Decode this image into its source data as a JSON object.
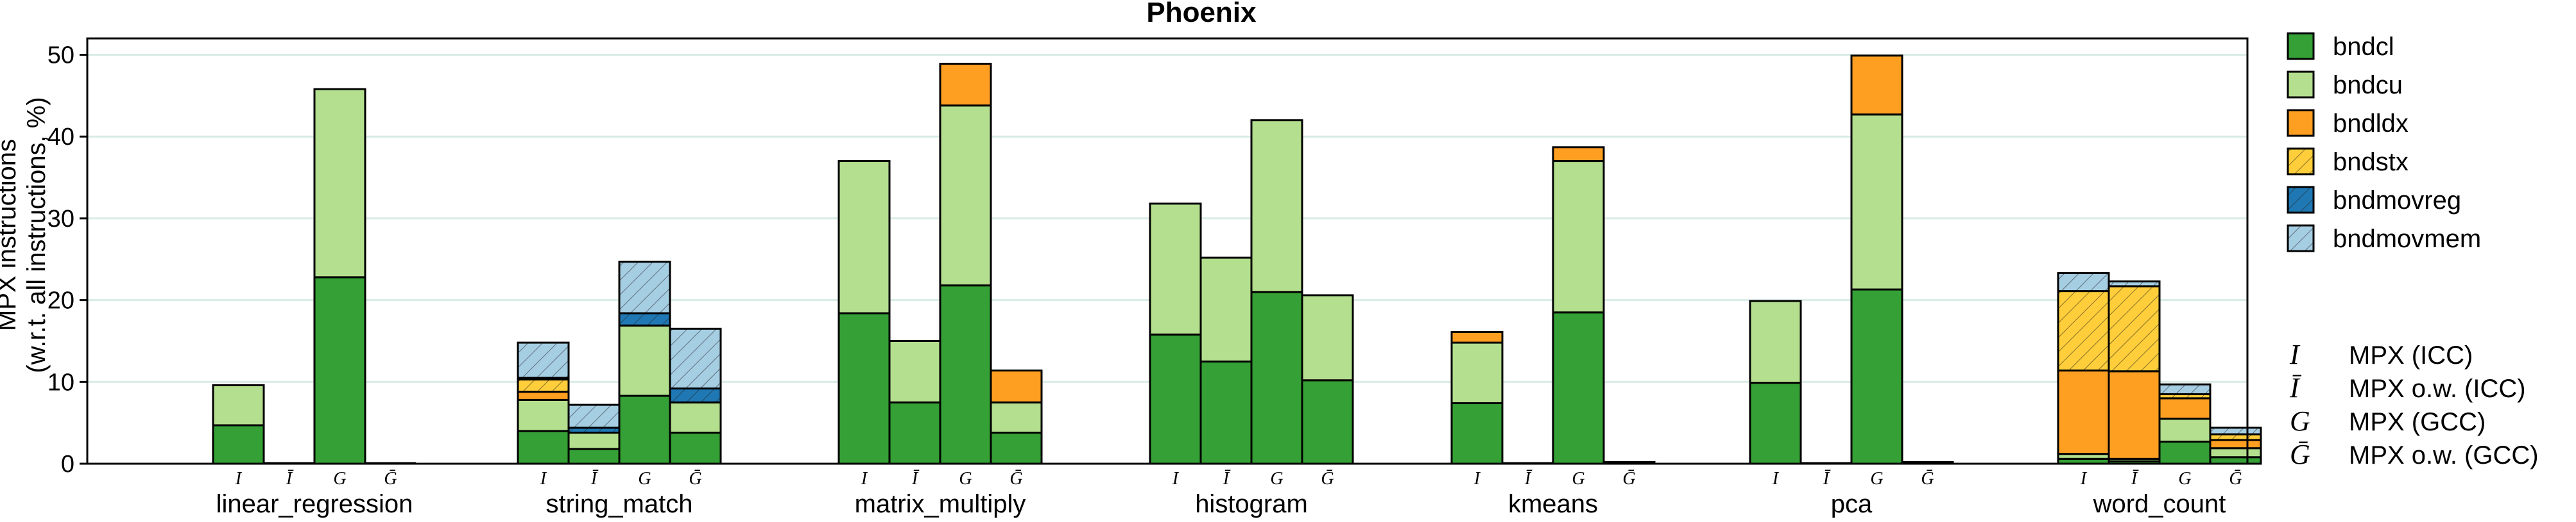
{
  "chart_data": {
    "type": "bar",
    "stacked": true,
    "title": "Phoenix",
    "ylabel_line1": "MPX instructions",
    "ylabel_line2": "(w.r.t. all instructions, %)",
    "ylim": [
      0,
      52
    ],
    "yticks": [
      0,
      10,
      20,
      30,
      40,
      50
    ],
    "grid": "horizontal",
    "legend_position": "right",
    "series": [
      {
        "name": "bndcl",
        "color": "#35a035",
        "pattern": "solid"
      },
      {
        "name": "bndcu",
        "color": "#b3df8e",
        "pattern": "solid"
      },
      {
        "name": "bndldx",
        "color": "#ff9f22",
        "pattern": "solid"
      },
      {
        "name": "bndstx",
        "color": "#ffce3a",
        "pattern": "hatch"
      },
      {
        "name": "bndmovreg",
        "color": "#1f78b4",
        "pattern": "hatch"
      },
      {
        "name": "bndmovmem",
        "color": "#a6cee3",
        "pattern": "hatch"
      }
    ],
    "variants": [
      "I",
      "Ī",
      "G",
      "Ḡ"
    ],
    "variant_key": [
      {
        "symbol": "I",
        "label": "MPX (ICC)"
      },
      {
        "symbol": "Ī",
        "label": "MPX o.w. (ICC)"
      },
      {
        "symbol": "G",
        "label": "MPX (GCC)"
      },
      {
        "symbol": "Ḡ",
        "label": "MPX o.w. (GCC)"
      }
    ],
    "benchmarks": [
      {
        "name": "linear_regression",
        "bars": [
          {
            "variant": "I",
            "values": [
              4.7,
              4.9,
              0,
              0,
              0,
              0
            ]
          },
          {
            "variant": "Ī",
            "values": [
              0,
              0,
              0,
              0,
              0,
              0
            ]
          },
          {
            "variant": "G",
            "values": [
              22.8,
              23.0,
              0,
              0,
              0,
              0
            ]
          },
          {
            "variant": "Ḡ",
            "values": [
              0,
              0,
              0,
              0,
              0,
              0
            ]
          }
        ]
      },
      {
        "name": "string_match",
        "bars": [
          {
            "variant": "I",
            "values": [
              4.0,
              3.8,
              1.0,
              1.5,
              0.2,
              4.3
            ]
          },
          {
            "variant": "Ī",
            "values": [
              1.8,
              2.0,
              0,
              0,
              0.6,
              2.8
            ]
          },
          {
            "variant": "G",
            "values": [
              8.3,
              8.6,
              0,
              0,
              1.5,
              6.3
            ]
          },
          {
            "variant": "Ḡ",
            "values": [
              3.8,
              3.7,
              0,
              0,
              1.7,
              7.3
            ]
          }
        ]
      },
      {
        "name": "matrix_multiply",
        "bars": [
          {
            "variant": "I",
            "values": [
              18.4,
              18.6,
              0,
              0,
              0,
              0
            ]
          },
          {
            "variant": "Ī",
            "values": [
              7.5,
              7.5,
              0,
              0,
              0,
              0
            ]
          },
          {
            "variant": "G",
            "values": [
              21.8,
              22.0,
              5.1,
              0,
              0,
              0
            ]
          },
          {
            "variant": "Ḡ",
            "values": [
              3.8,
              3.7,
              3.9,
              0,
              0,
              0
            ]
          }
        ]
      },
      {
        "name": "histogram",
        "bars": [
          {
            "variant": "I",
            "values": [
              15.8,
              16.0,
              0,
              0,
              0,
              0
            ]
          },
          {
            "variant": "Ī",
            "values": [
              12.5,
              12.7,
              0,
              0,
              0,
              0
            ]
          },
          {
            "variant": "G",
            "values": [
              21.0,
              21.0,
              0,
              0,
              0,
              0
            ]
          },
          {
            "variant": "Ḡ",
            "values": [
              10.2,
              10.4,
              0,
              0,
              0,
              0
            ]
          }
        ]
      },
      {
        "name": "kmeans",
        "bars": [
          {
            "variant": "I",
            "values": [
              7.4,
              7.4,
              1.3,
              0,
              0,
              0
            ]
          },
          {
            "variant": "Ī",
            "values": [
              0,
              0,
              0,
              0,
              0,
              0
            ]
          },
          {
            "variant": "G",
            "values": [
              18.5,
              18.5,
              1.7,
              0,
              0,
              0
            ]
          },
          {
            "variant": "Ḡ",
            "values": [
              0.1,
              0.1,
              0,
              0,
              0,
              0
            ]
          }
        ]
      },
      {
        "name": "pca",
        "bars": [
          {
            "variant": "I",
            "values": [
              9.9,
              10.0,
              0,
              0,
              0,
              0
            ]
          },
          {
            "variant": "Ī",
            "values": [
              0,
              0,
              0,
              0,
              0,
              0
            ]
          },
          {
            "variant": "G",
            "values": [
              21.3,
              21.4,
              7.2,
              0,
              0,
              0
            ]
          },
          {
            "variant": "Ḡ",
            "values": [
              0.1,
              0.1,
              0,
              0,
              0,
              0
            ]
          }
        ]
      },
      {
        "name": "word_count",
        "bars": [
          {
            "variant": "I",
            "values": [
              0.6,
              0.6,
              10.2,
              9.7,
              0,
              2.2
            ]
          },
          {
            "variant": "Ī",
            "values": [
              0.3,
              0.3,
              10.7,
              10.4,
              0,
              0.6
            ]
          },
          {
            "variant": "G",
            "values": [
              2.7,
              2.8,
              2.5,
              0.5,
              0,
              1.2
            ]
          },
          {
            "variant": "Ḡ",
            "values": [
              0.8,
              1.1,
              1.0,
              0.7,
              0,
              0.8
            ]
          }
        ]
      }
    ]
  }
}
